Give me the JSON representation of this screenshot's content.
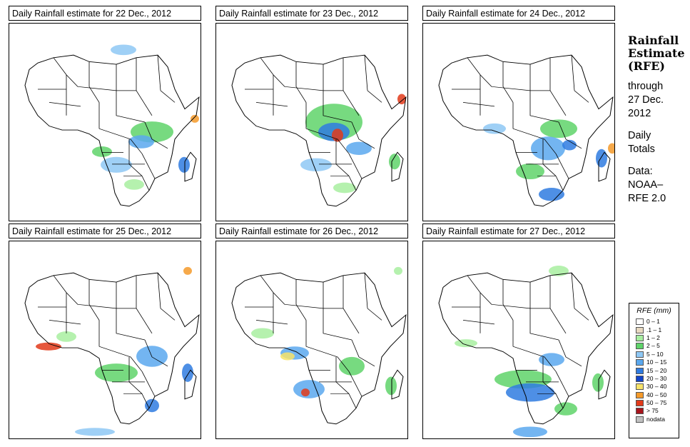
{
  "panels": [
    {
      "title": "Daily Rainfall estimate for  22 Dec., 2012",
      "rain_pattern": "day1"
    },
    {
      "title": "Daily Rainfall estimate for  23 Dec., 2012",
      "rain_pattern": "day2"
    },
    {
      "title": "Daily Rainfall estimate for  24 Dec., 2012",
      "rain_pattern": "day3"
    },
    {
      "title": "Daily Rainfall estimate for  25 Dec., 2012",
      "rain_pattern": "day4"
    },
    {
      "title": "Daily Rainfall estimate for  26 Dec., 2012",
      "rain_pattern": "day5"
    },
    {
      "title": "Daily Rainfall estimate for  27 Dec., 2012",
      "rain_pattern": "day6"
    }
  ],
  "sidebar": {
    "title_line1": "Rainfall",
    "title_line2": "Estimate",
    "title_line3": "(RFE)",
    "through_line1": "through",
    "through_line2": "27 Dec.",
    "through_line3": "2012",
    "daily_line1": "Daily",
    "daily_line2": "Totals",
    "data_line1": "Data:",
    "data_line2": "NOAA–",
    "data_line3": "RFE 2.0"
  },
  "legend": {
    "title": "RFE (mm)",
    "items": [
      {
        "label": "0 – 1",
        "color": "#ffffff"
      },
      {
        "label": ".1 – 1",
        "color": "#e8d9c0"
      },
      {
        "label": "1 – 2",
        "color": "#a8eea0"
      },
      {
        "label": "2 – 5",
        "color": "#5fd36a"
      },
      {
        "label": "5 – 10",
        "color": "#8ec8f5"
      },
      {
        "label": "10 – 15",
        "color": "#5aa8ee"
      },
      {
        "label": "15 – 20",
        "color": "#2f7be0"
      },
      {
        "label": "20 – 30",
        "color": "#1144c8"
      },
      {
        "label": "30 – 40",
        "color": "#f7e36a"
      },
      {
        "label": "40 – 50",
        "color": "#f59a2a"
      },
      {
        "label": "50 – 75",
        "color": "#e23a1a"
      },
      {
        "label": "> 75",
        "color": "#a8141c"
      },
      {
        "label": "nodata",
        "color": "#c0c0c0"
      }
    ]
  }
}
